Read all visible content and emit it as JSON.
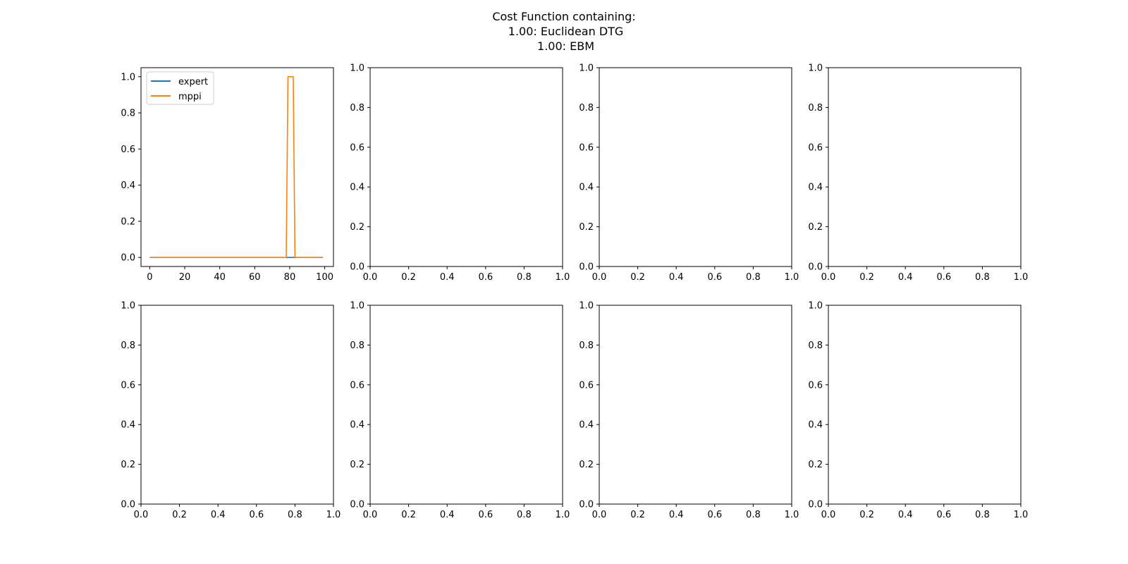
{
  "title_lines": [
    "Cost Function containing:",
    "\t1.00:\tEuclidean DTG",
    "\t1.00:\tEBM"
  ],
  "colors": {
    "expert": "#1f77b4",
    "mppi": "#ff7f0e",
    "axis": "#000000"
  },
  "chart_data": [
    {
      "type": "line",
      "xlim": [
        -5,
        105
      ],
      "ylim": [
        -0.05,
        1.05
      ],
      "xticks": [
        0,
        20,
        40,
        60,
        80,
        100
      ],
      "yticks": [
        0.0,
        0.2,
        0.4,
        0.6,
        0.8,
        1.0
      ],
      "xtick_labels": [
        "0",
        "20",
        "40",
        "60",
        "80",
        "100"
      ],
      "ytick_labels": [
        "0.0",
        "0.2",
        "0.4",
        "0.6",
        "0.8",
        "1.0"
      ],
      "legend_position": "upper left",
      "series": [
        {
          "name": "expert",
          "x": [
            0,
            99
          ],
          "y": [
            0,
            0
          ]
        },
        {
          "name": "mppi",
          "x": [
            0,
            78,
            79,
            82,
            83,
            99
          ],
          "y": [
            0,
            0,
            1,
            1,
            0,
            0
          ]
        }
      ]
    },
    {
      "type": "line",
      "xlim": [
        0,
        1
      ],
      "ylim": [
        0,
        1
      ],
      "xticks": [
        0,
        0.2,
        0.4,
        0.6,
        0.8,
        1.0
      ],
      "yticks": [
        0,
        0.2,
        0.4,
        0.6,
        0.8,
        1.0
      ],
      "xtick_labels": [
        "0.0",
        "0.2",
        "0.4",
        "0.6",
        "0.8",
        "1.0"
      ],
      "ytick_labels": [
        "0.0",
        "0.2",
        "0.4",
        "0.6",
        "0.8",
        "1.0"
      ],
      "series": []
    },
    {
      "type": "line",
      "xlim": [
        0,
        1
      ],
      "ylim": [
        0,
        1
      ],
      "xticks": [
        0,
        0.2,
        0.4,
        0.6,
        0.8,
        1.0
      ],
      "yticks": [
        0,
        0.2,
        0.4,
        0.6,
        0.8,
        1.0
      ],
      "xtick_labels": [
        "0.0",
        "0.2",
        "0.4",
        "0.6",
        "0.8",
        "1.0"
      ],
      "ytick_labels": [
        "0.0",
        "0.2",
        "0.4",
        "0.6",
        "0.8",
        "1.0"
      ],
      "series": []
    },
    {
      "type": "line",
      "xlim": [
        0,
        1
      ],
      "ylim": [
        0,
        1
      ],
      "xticks": [
        0,
        0.2,
        0.4,
        0.6,
        0.8,
        1.0
      ],
      "yticks": [
        0,
        0.2,
        0.4,
        0.6,
        0.8,
        1.0
      ],
      "xtick_labels": [
        "0.0",
        "0.2",
        "0.4",
        "0.6",
        "0.8",
        "1.0"
      ],
      "ytick_labels": [
        "0.0",
        "0.2",
        "0.4",
        "0.6",
        "0.8",
        "1.0"
      ],
      "series": []
    },
    {
      "type": "line",
      "xlim": [
        0,
        1
      ],
      "ylim": [
        0,
        1
      ],
      "xticks": [
        0,
        0.2,
        0.4,
        0.6,
        0.8,
        1.0
      ],
      "yticks": [
        0,
        0.2,
        0.4,
        0.6,
        0.8,
        1.0
      ],
      "xtick_labels": [
        "0.0",
        "0.2",
        "0.4",
        "0.6",
        "0.8",
        "1.0"
      ],
      "ytick_labels": [
        "0.0",
        "0.2",
        "0.4",
        "0.6",
        "0.8",
        "1.0"
      ],
      "series": []
    },
    {
      "type": "line",
      "xlim": [
        0,
        1
      ],
      "ylim": [
        0,
        1
      ],
      "xticks": [
        0,
        0.2,
        0.4,
        0.6,
        0.8,
        1.0
      ],
      "yticks": [
        0,
        0.2,
        0.4,
        0.6,
        0.8,
        1.0
      ],
      "xtick_labels": [
        "0.0",
        "0.2",
        "0.4",
        "0.6",
        "0.8",
        "1.0"
      ],
      "ytick_labels": [
        "0.0",
        "0.2",
        "0.4",
        "0.6",
        "0.8",
        "1.0"
      ],
      "series": []
    },
    {
      "type": "line",
      "xlim": [
        0,
        1
      ],
      "ylim": [
        0,
        1
      ],
      "xticks": [
        0,
        0.2,
        0.4,
        0.6,
        0.8,
        1.0
      ],
      "yticks": [
        0,
        0.2,
        0.4,
        0.6,
        0.8,
        1.0
      ],
      "xtick_labels": [
        "0.0",
        "0.2",
        "0.4",
        "0.6",
        "0.8",
        "1.0"
      ],
      "ytick_labels": [
        "0.0",
        "0.2",
        "0.4",
        "0.6",
        "0.8",
        "1.0"
      ],
      "series": []
    },
    {
      "type": "line",
      "xlim": [
        0,
        1
      ],
      "ylim": [
        0,
        1
      ],
      "xticks": [
        0,
        0.2,
        0.4,
        0.6,
        0.8,
        1.0
      ],
      "yticks": [
        0,
        0.2,
        0.4,
        0.6,
        0.8,
        1.0
      ],
      "xtick_labels": [
        "0.0",
        "0.2",
        "0.4",
        "0.6",
        "0.8",
        "1.0"
      ],
      "ytick_labels": [
        "0.0",
        "0.2",
        "0.4",
        "0.6",
        "0.8",
        "1.0"
      ],
      "series": []
    }
  ]
}
